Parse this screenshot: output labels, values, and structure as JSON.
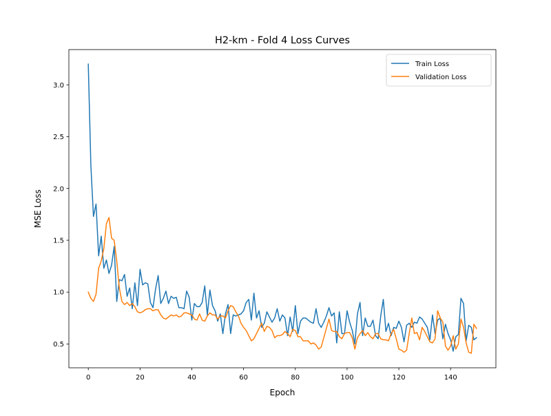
{
  "chart_data": {
    "type": "line",
    "title": "H2-km - Fold 4 Loss Curves",
    "xlabel": "Epoch",
    "ylabel": "MSE Loss",
    "xlim": [
      -7.5,
      157.5
    ],
    "ylim": [
      0.27,
      3.34
    ],
    "xticks": [
      0,
      20,
      40,
      60,
      80,
      100,
      120,
      140
    ],
    "yticks": [
      0.5,
      1.0,
      1.5,
      2.0,
      2.5,
      3.0
    ],
    "xtick_labels": [
      "0",
      "20",
      "40",
      "60",
      "80",
      "100",
      "120",
      "140"
    ],
    "ytick_labels": [
      "0.5",
      "1.0",
      "1.5",
      "2.0",
      "2.5",
      "3.0"
    ],
    "grid": false,
    "legend_position": "top-right",
    "x_start": 0,
    "series": [
      {
        "name": "Train Loss",
        "color": "#1f77b4",
        "values": [
          3.2,
          2.22,
          1.73,
          1.85,
          1.35,
          1.54,
          1.23,
          1.31,
          1.18,
          1.26,
          1.44,
          0.91,
          1.12,
          1.11,
          1.17,
          0.96,
          1.04,
          0.84,
          1.09,
          0.87,
          1.22,
          1.07,
          1.09,
          1.08,
          0.9,
          0.85,
          1.03,
          1.16,
          0.89,
          0.94,
          1.01,
          0.89,
          0.96,
          0.94,
          0.95,
          0.85,
          0.85,
          0.84,
          1.01,
          0.95,
          0.73,
          0.89,
          0.86,
          0.86,
          0.9,
          1.06,
          0.78,
          1.02,
          0.87,
          0.82,
          0.72,
          0.79,
          0.6,
          0.79,
          0.88,
          0.6,
          0.78,
          0.77,
          0.78,
          0.79,
          0.82,
          0.9,
          0.93,
          0.73,
          0.99,
          0.75,
          0.82,
          0.66,
          0.7,
          0.81,
          0.76,
          0.71,
          0.75,
          0.84,
          0.72,
          0.78,
          0.75,
          0.58,
          0.76,
          0.62,
          0.87,
          0.6,
          0.72,
          0.75,
          0.75,
          0.73,
          0.71,
          0.7,
          0.84,
          0.7,
          0.66,
          0.71,
          0.77,
          0.85,
          0.77,
          0.8,
          0.51,
          0.81,
          0.6,
          0.6,
          0.82,
          0.71,
          0.63,
          0.5,
          0.79,
          0.9,
          0.58,
          0.75,
          0.67,
          0.67,
          0.73,
          0.58,
          0.55,
          0.77,
          0.93,
          0.62,
          0.7,
          0.58,
          0.66,
          0.65,
          0.72,
          0.66,
          0.52,
          0.68,
          0.7,
          0.66,
          0.71,
          0.7,
          0.76,
          0.74,
          0.7,
          0.66,
          0.54,
          0.78,
          0.6,
          0.73,
          0.75,
          0.55,
          0.69,
          0.6,
          0.54,
          0.43,
          0.57,
          0.59,
          0.94,
          0.89,
          0.53,
          0.68,
          0.66,
          0.54,
          0.56
        ]
      },
      {
        "name": "Validation Loss",
        "color": "#ff7f0e",
        "values": [
          1.0,
          0.94,
          0.91,
          0.98,
          1.23,
          1.3,
          1.42,
          1.66,
          1.72,
          1.52,
          1.5,
          1.3,
          1.04,
          0.91,
          0.88,
          0.9,
          0.87,
          0.89,
          0.86,
          0.81,
          0.8,
          0.81,
          0.83,
          0.84,
          0.84,
          0.82,
          0.83,
          0.83,
          0.78,
          0.75,
          0.74,
          0.76,
          0.78,
          0.77,
          0.78,
          0.76,
          0.77,
          0.8,
          0.8,
          0.79,
          0.78,
          0.74,
          0.73,
          0.79,
          0.73,
          0.72,
          0.77,
          0.8,
          0.78,
          0.78,
          0.74,
          0.77,
          0.77,
          0.75,
          0.82,
          0.87,
          0.86,
          0.81,
          0.77,
          0.7,
          0.66,
          0.63,
          0.58,
          0.53,
          0.55,
          0.6,
          0.65,
          0.7,
          0.62,
          0.67,
          0.66,
          0.63,
          0.56,
          0.58,
          0.58,
          0.59,
          0.62,
          0.6,
          0.57,
          0.64,
          0.63,
          0.57,
          0.57,
          0.53,
          0.53,
          0.53,
          0.5,
          0.51,
          0.49,
          0.45,
          0.47,
          0.56,
          0.65,
          0.74,
          0.63,
          0.62,
          0.62,
          0.57,
          0.55,
          0.6,
          0.61,
          0.61,
          0.56,
          0.45,
          0.56,
          0.6,
          0.63,
          0.58,
          0.61,
          0.57,
          0.55,
          0.6,
          0.6,
          0.55,
          0.54,
          0.54,
          0.53,
          0.6,
          0.64,
          0.55,
          0.45,
          0.44,
          0.42,
          0.44,
          0.6,
          0.75,
          0.6,
          0.61,
          0.54,
          0.66,
          0.62,
          0.57,
          0.52,
          0.51,
          0.55,
          0.82,
          0.75,
          0.71,
          0.48,
          0.44,
          0.48,
          0.58,
          0.45,
          0.5,
          0.74,
          0.66,
          0.51,
          0.42,
          0.41,
          0.69,
          0.65
        ]
      }
    ]
  }
}
